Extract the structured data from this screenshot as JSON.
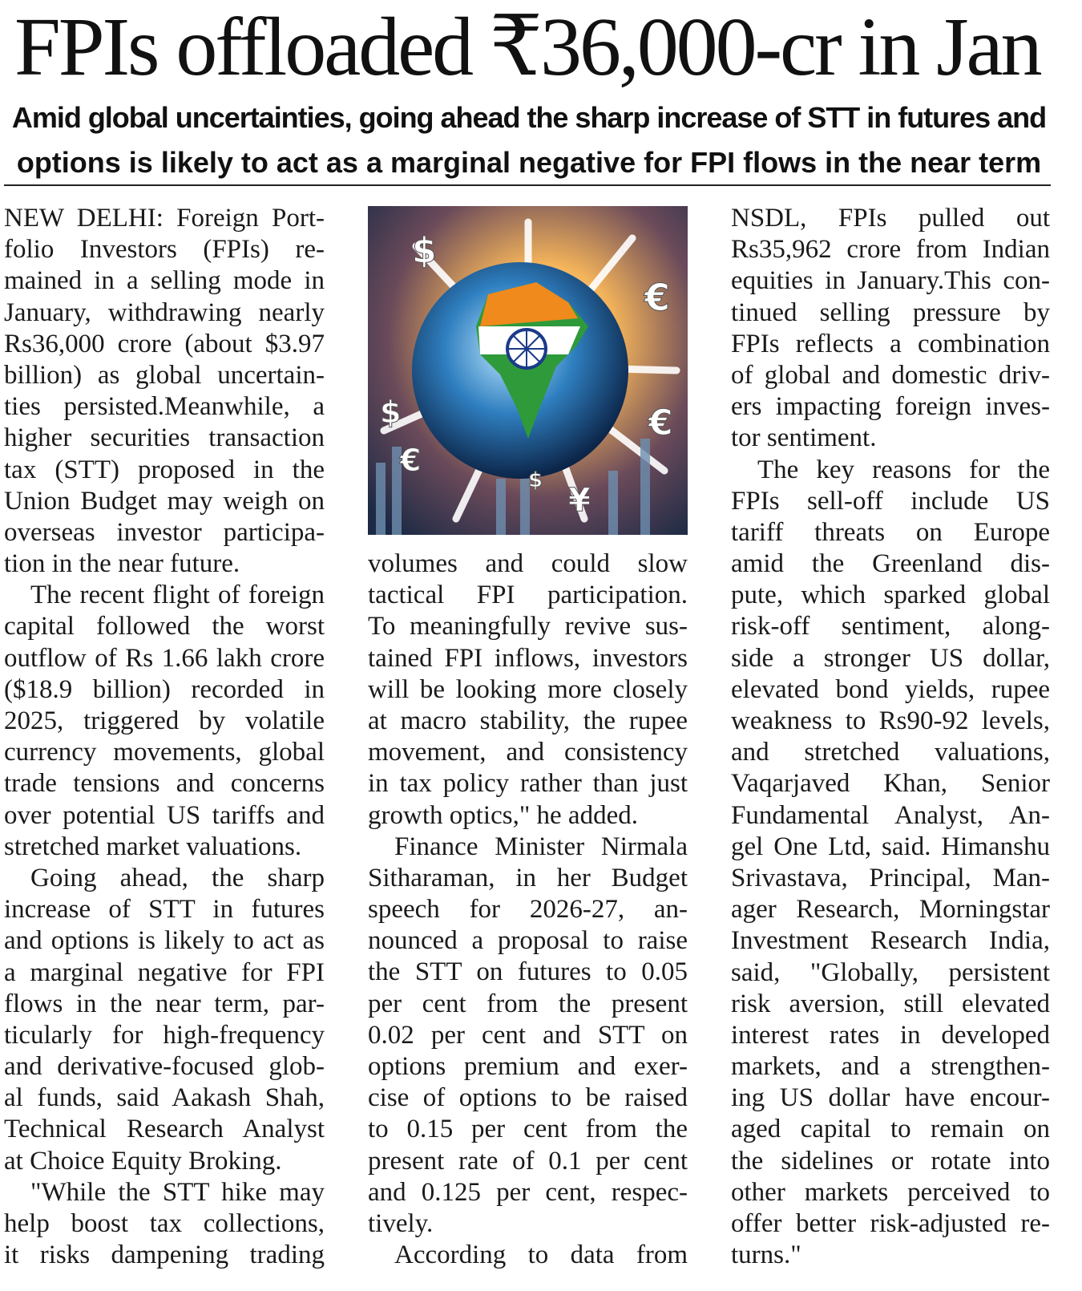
{
  "headline": "FPIs offloaded ₹36,000-cr in Jan",
  "subheadline": [
    "Amid global uncertainties, going ahead the sharp increase of STT in futures and",
    "options is likely to act as a marginal negative for FPI flows in the near term"
  ],
  "image": {
    "description_icon": "globe-india-currency-arrows-illustration",
    "currency_symbols": [
      "$",
      "€",
      "¥"
    ]
  },
  "columns": [
    {
      "paragraphs": [
        {
          "lines": [
            "NEW DELHI: Foreign Port-",
            "folio Investors (FPIs) re-",
            "mained in a selling mode in",
            "January, withdrawing nearly",
            "Rs36,000 crore (about $3.97",
            "billion) as global uncertain-",
            "ties persisted.Meanwhile, a",
            "higher securities transaction",
            "tax (STT) proposed in the",
            "Union Budget may weigh on",
            "overseas investor participa-",
            "tion in the near future."
          ],
          "indent": false
        },
        {
          "lines": [
            "The recent flight of foreign",
            "capital followed the worst",
            "outflow of Rs 1.66 lakh crore",
            "($18.9 billion) recorded in",
            "2025, triggered by volatile",
            "currency movements, global",
            "trade tensions and concerns",
            "over potential US tariffs and",
            "stretched market valuations."
          ],
          "indent": true
        },
        {
          "lines": [
            "Going ahead, the sharp",
            "increase of STT in futures",
            "and options is likely to act as",
            "a marginal negative for FPI",
            "flows in the near term, par-",
            "ticularly for high-frequency",
            "and derivative-focused glob-",
            "al funds, said Aakash Shah,",
            "Technical Research Analyst",
            "at Choice Equity Broking."
          ],
          "indent": true
        },
        {
          "lines": [
            "\"While the STT hike may",
            "help boost tax collections,",
            "it risks dampening trading"
          ],
          "indent": true,
          "continues": true
        }
      ]
    },
    {
      "paragraphs": [
        {
          "lines": [
            "volumes and could slow",
            "tactical FPI participation.",
            "To meaningfully revive sus-",
            "tained FPI inflows, investors",
            "will be looking more closely",
            "at macro stability, the rupee",
            "movement, and consistency",
            "in tax policy rather than just",
            "growth optics,\" he added."
          ],
          "indent": false
        },
        {
          "lines": [
            "Finance Minister Nirmala",
            "Sitharaman, in her Budget",
            "speech for 2026-27, an-",
            "nounced a proposal to raise",
            "the STT on futures to 0.05",
            "per cent from the present",
            "0.02 per cent and STT on",
            "options premium and exer-",
            "cise of options to be raised",
            "to 0.15 per cent from the",
            "present rate of 0.1 per cent",
            "and 0.125 per cent, respec-",
            "tively."
          ],
          "indent": true
        },
        {
          "lines": [
            "According to data from"
          ],
          "indent": true,
          "continues": true
        }
      ]
    },
    {
      "paragraphs": [
        {
          "lines": [
            "NSDL, FPIs pulled out",
            "Rs35,962 crore from Indian",
            "equities in January.This con-",
            "tinued selling pressure by",
            "FPIs reflects a combination",
            "of global and domestic driv-",
            "ers impacting foreign inves-",
            "tor sentiment."
          ],
          "indent": false
        },
        {
          "lines": [
            "The key reasons for the",
            "FPIs sell-off include US",
            "tariff threats on Europe",
            "amid the Greenland dis-",
            "pute, which sparked global",
            "risk-off sentiment, along-",
            "side a stronger US dollar,",
            "elevated bond yields, rupee",
            "weakness to Rs90-92 levels,",
            "and stretched valuations,",
            "Vaqarjaved Khan, Senior",
            "Fundamental Analyst, An-",
            "gel One Ltd, said. Himanshu",
            "Srivastava, Principal, Man-",
            "ager Research, Morningstar",
            "Investment Research India,",
            "said, \"Globally, persistent",
            "risk aversion, still elevated",
            "interest rates in developed",
            "markets, and a strengthen-",
            "ing US dollar have encour-",
            "aged capital to remain on",
            "the sidelines or rotate into",
            "other markets perceived to",
            "offer better risk-adjusted re-",
            "turns.\""
          ],
          "indent": true
        }
      ]
    }
  ]
}
